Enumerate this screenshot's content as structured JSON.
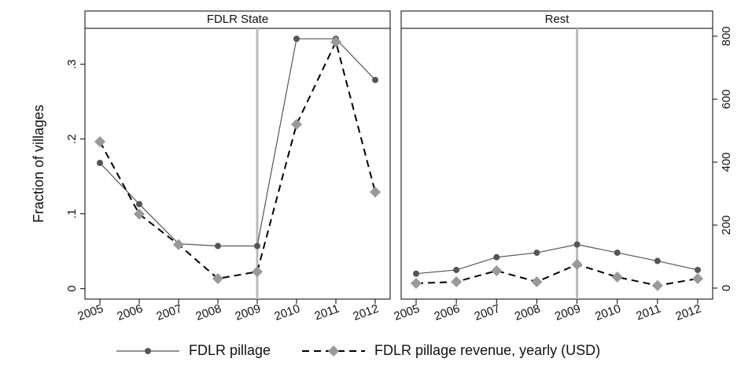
{
  "chart_data": [
    {
      "type": "line",
      "title": "FDLR State",
      "ylabel": "Fraction of villages",
      "categories": [
        "2005",
        "2006",
        "2007",
        "2008",
        "2009",
        "2010",
        "2011",
        "2012"
      ],
      "vline": "2009",
      "ylim": [
        -0.014,
        0.348
      ],
      "yticks": [
        0,
        {
          "value": 0.1,
          "label": ".1"
        },
        {
          "value": 0.2,
          "label": ".2"
        },
        {
          "value": 0.3,
          "label": ".3"
        }
      ],
      "y2lim": [
        -35,
        825
      ],
      "series": [
        {
          "name": "FDLR pillage",
          "color": "#555555",
          "values": [
            0.168,
            0.113,
            0.06,
            0.057,
            0.057,
            0.334,
            0.334,
            0.279
          ]
        },
        {
          "name": "FDLR pillage revenue, yearly (USD)",
          "color": "#999999",
          "axis": "y2",
          "values": [
            465,
            235,
            138,
            30,
            52,
            520,
            782,
            305
          ]
        }
      ]
    },
    {
      "type": "line",
      "title": "Rest",
      "categories": [
        "2005",
        "2006",
        "2007",
        "2008",
        "2009",
        "2010",
        "2011",
        "2012"
      ],
      "vline": "2009",
      "ylim": [
        -0.014,
        0.348
      ],
      "y2lim": [
        -35,
        825
      ],
      "y2ticks": [
        0,
        200,
        400,
        600,
        800
      ],
      "series": [
        {
          "color": "#555555",
          "values": [
            0.02,
            0.025,
            0.042,
            0.048,
            0.059,
            0.048,
            0.037,
            0.025
          ]
        },
        {
          "color": "#999999",
          "axis": "y2",
          "values": [
            15,
            20,
            55,
            20,
            75,
            35,
            8,
            30
          ]
        }
      ]
    }
  ]
}
